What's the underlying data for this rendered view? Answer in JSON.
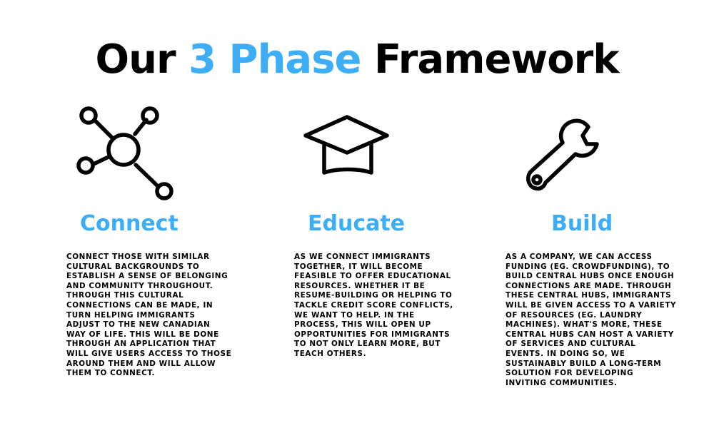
{
  "title": {
    "prefix": "Our",
    "accent": "3 Phase",
    "suffix": "Framework"
  },
  "colors": {
    "accent": "#3daef5",
    "text": "#000000",
    "background": "#ffffff"
  },
  "phases": [
    {
      "icon": "network-icon",
      "heading": "Connect",
      "text": "CONNECT THOSE WITH SIMILAR\nCULTURAL BACKGROUNDS TO\nESTABLISH A SENSE OF BELONGING\nAND COMMUNITY THROUGHOUT.\nTHROUGH THIS CULTURAL\nCONNECTIONS CAN BE MADE, IN\nTURN HELPING IMMIGRANTS\nADJUST TO THE NEW CANADIAN\nWAY OF LIFE. THIS WILL BE DONE\nTHROUGH AN APPLICATION THAT\nWILL GIVE USERS ACCESS TO THOSE\nAROUND THEM AND WILL ALLOW\nTHEM TO CONNECT."
    },
    {
      "icon": "graduation-cap-icon",
      "heading": "Educate",
      "text": "AS WE CONNECT IMMIGRANTS\nTOGETHER, IT WILL BECOME\nFEASIBLE TO OFFER EDUCATIONAL\nRESOURCES. WHETHER IT BE\nRESUME-BUILDING OR HELPING TO\nTACKLE CREDIT SCORE CONFLICTS,\nWE WANT TO HELP. IN THE\nPROCESS, THIS WILL OPEN UP\nOPPORTUNITIES FOR IMMIGRANTS\nTO NOT ONLY LEARN MORE, BUT\nTEACH OTHERS."
    },
    {
      "icon": "wrench-icon",
      "heading": "Build",
      "text": "AS A COMPANY, WE CAN ACCESS\nFUNDING (EG. CROWDFUNDING), TO\nBUILD CENTRAL HUBS ONCE ENOUGH\nCONNECTIONS ARE MADE. THROUGH\nTHESE CENTRAL HUBS, IMMIGRANTS\nWILL BE GIVEN ACCESS TO A VARIETY\nOF RESOURCES (EG. LAUNDRY\nMACHINES). WHAT'S MORE, THESE\nCENTRAL HUBS CAN HOST A VARIETY\nOF SERVICES AND CULTURAL\nEVENTS. IN DOING SO, WE\nSUSTAINABLY BUILD A LONG-TERM\nSOLUTION FOR DEVELOPING\nINVITING COMMUNITIES."
    }
  ]
}
